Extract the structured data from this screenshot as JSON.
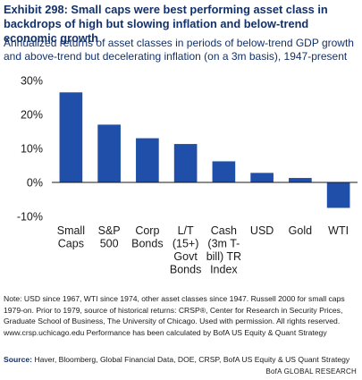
{
  "title": "Exhibit 298: Small caps were best performing asset class in backdrops of high but slowing inflation and below-trend economic growth",
  "subtitle": "Annualized returns of asset classes in periods of below-trend GDP growth and above-trend but decelerating inflation (on a 3m basis), 1947-present",
  "note": "Note: USD since 1967, WTI since 1974, other asset classes since 1947. Russell 2000 for small caps 1979-on. Prior to 1979, source of historical returns: CRSP®, Center for Research in Security Prices, Graduate School of Business, The University of Chicago. Used with permission. All rights reserved. www.crsp.uchicago.edu Performance has been calculated by BofA US Equity & Quant Strategy",
  "source_label": "Source:",
  "source_text": "Haver, Bloomberg, Global Financial Data, DOE, CRSP, BofA US Equity & US Quant Strategy",
  "brand": "BofA GLOBAL RESEARCH",
  "colors": {
    "bar": "#1f4fa8",
    "title": "#13316a"
  },
  "chart_data": {
    "type": "bar",
    "categories": [
      [
        "Small",
        "Caps"
      ],
      [
        "S&P",
        "500"
      ],
      [
        "Corp",
        "Bonds"
      ],
      [
        "L/T",
        "(15+)",
        "Govt",
        "Bonds"
      ],
      [
        "Cash",
        "(3m T-",
        "bill) TR",
        "Index"
      ],
      [
        "USD"
      ],
      [
        "Gold"
      ],
      [
        "WTI"
      ]
    ],
    "values": [
      26.5,
      17,
      13,
      11.3,
      6.2,
      2.8,
      1.3,
      -7.5
    ],
    "ylim": [
      -10,
      30
    ],
    "yticks": [
      30,
      20,
      10,
      0,
      -10
    ],
    "ytick_labels": [
      "30%",
      "20%",
      "10%",
      "0%",
      "-10%"
    ],
    "grid": false
  }
}
